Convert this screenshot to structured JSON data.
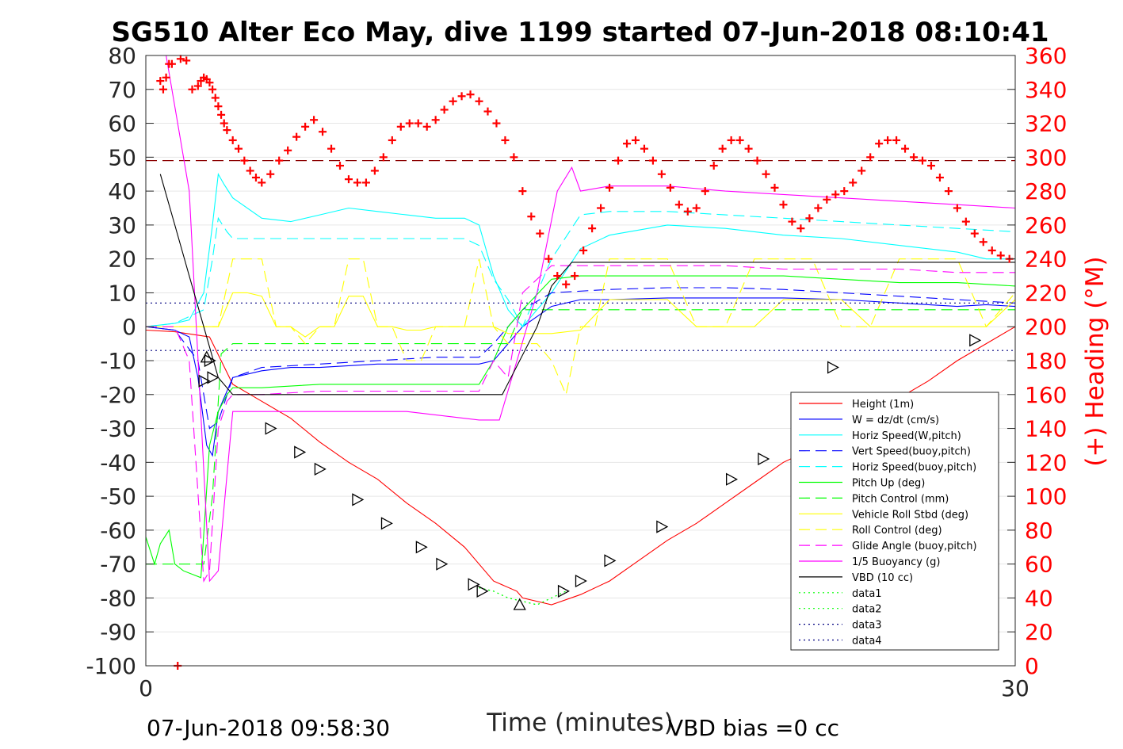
{
  "chart_data": {
    "type": "line",
    "title": "SG510 Alter Eco May, dive 1199 started 07-Jun-2018 08:10:41",
    "xlabel": "Time (minutes)",
    "ylabel_right": "(+) Heading (°M)",
    "footer_left": "07-Jun-2018 09:58:30",
    "footer_right": "VBD bias =0 cc",
    "xlim": [
      0,
      30
    ],
    "ylim": [
      -100,
      80
    ],
    "ylim_right": [
      0,
      360
    ],
    "x_ticks": [
      0,
      30
    ],
    "y_ticks": [
      80,
      70,
      60,
      50,
      40,
      30,
      20,
      10,
      0,
      -10,
      -20,
      -30,
      -40,
      -50,
      -60,
      -70,
      -80,
      -90,
      -100
    ],
    "y_ticks_right": [
      360,
      340,
      320,
      300,
      280,
      260,
      240,
      220,
      200,
      180,
      160,
      140,
      120,
      100,
      80,
      60,
      40,
      20,
      0
    ],
    "grid": true,
    "legend_position": "bottom-right",
    "colors": {
      "red": "#ff0000",
      "blue": "#0000ff",
      "cyan": "#00ffff",
      "green": "#00ff00",
      "yellow": "#ffff00",
      "magenta": "#ff00ff",
      "black": "#000000",
      "dark_red": "#8b0000",
      "navy": "#000080"
    },
    "series": [
      {
        "name": "Height (1m)",
        "color": "#ff0000",
        "style": "solid",
        "x": [
          0,
          1,
          2.2,
          3,
          4,
          5,
          6,
          7,
          8,
          9,
          10,
          11,
          11.5,
          12,
          12.8,
          13,
          14,
          15,
          16,
          17,
          18,
          19,
          20,
          21,
          22,
          23,
          24,
          25,
          26,
          27,
          28,
          29,
          30
        ],
        "y": [
          -1,
          -1.5,
          -3,
          -17,
          -22,
          -27,
          -34,
          -40,
          -45,
          -52,
          -58,
          -65,
          -70,
          -75,
          -78,
          -80,
          -82,
          -79,
          -75,
          -69,
          -63,
          -58,
          -52,
          -46,
          -40,
          -36,
          -32,
          -27,
          -21,
          -16,
          -10,
          -5,
          0
        ]
      },
      {
        "name": "W = dz/dt (cm/s)",
        "color": "#0000ff",
        "style": "solid",
        "x": [
          0,
          1,
          1.5,
          1.8,
          2.1,
          2.3,
          2.5,
          3,
          4,
          5,
          6,
          8,
          10,
          11,
          11.5,
          12,
          13,
          14,
          15,
          16,
          18,
          20,
          22,
          24,
          26,
          28,
          29,
          30
        ],
        "y": [
          0,
          -1,
          -3,
          -15,
          -35,
          -38,
          -25,
          -15,
          -13,
          -12,
          -12,
          -11,
          -11,
          -11,
          -11,
          -10,
          0,
          6,
          8,
          8,
          8.5,
          8.5,
          8.5,
          8,
          7,
          6,
          6.5,
          6
        ]
      },
      {
        "name": "Horiz Speed(W,pitch)",
        "color": "#00ffff",
        "style": "solid",
        "x": [
          0,
          1,
          1.5,
          2,
          2.3,
          2.5,
          2.7,
          3,
          4,
          5,
          6,
          7,
          8,
          9,
          10,
          11,
          11.5,
          12,
          12.5,
          13,
          14,
          15,
          16,
          18,
          20,
          22,
          24,
          26,
          28,
          29,
          30
        ],
        "y": [
          0,
          1,
          2,
          10,
          30,
          45,
          42,
          38,
          32,
          31,
          33,
          35,
          34,
          33,
          32,
          32,
          30,
          15,
          5,
          0,
          10,
          23,
          27,
          30,
          29,
          27,
          26,
          24,
          22,
          20,
          20
        ]
      },
      {
        "name": "Vert Speed(buoy,pitch)",
        "color": "#0000ff",
        "style": "dashed",
        "x": [
          0,
          1,
          1.8,
          2.2,
          2.5,
          3,
          4,
          6,
          8,
          10,
          11,
          11.5,
          12,
          13,
          14,
          16,
          18,
          20,
          22,
          24,
          26,
          28,
          30
        ],
        "y": [
          0,
          -1,
          -10,
          -30,
          -28,
          -15,
          -12,
          -11,
          -10,
          -9,
          -9,
          -9,
          -5,
          5,
          10,
          11,
          11.5,
          11.5,
          11,
          10,
          9,
          8,
          7
        ]
      },
      {
        "name": "Horiz Speed(buoy,pitch)",
        "color": "#00ffff",
        "style": "dashed",
        "x": [
          0,
          1,
          2,
          2.3,
          2.5,
          2.8,
          3,
          4,
          6,
          8,
          10,
          11,
          11.5,
          12,
          12.5,
          13,
          14,
          15,
          16,
          18,
          20,
          22,
          24,
          26,
          28,
          30
        ],
        "y": [
          0,
          1,
          5,
          20,
          32,
          28,
          26,
          26,
          26,
          26,
          26,
          26,
          24,
          14,
          8,
          0,
          20,
          33,
          34,
          34,
          33,
          32,
          31,
          30,
          29,
          28
        ]
      },
      {
        "name": "Pitch Up (deg)",
        "color": "#00ff00",
        "style": "solid",
        "x": [
          0,
          0.3,
          0.5,
          0.8,
          1,
          1.3,
          1.6,
          1.9,
          2.2,
          2.5,
          2.8,
          3,
          4,
          6,
          8,
          10,
          11,
          11.5,
          12,
          12.5,
          13,
          14,
          15,
          16,
          18,
          20,
          22,
          24,
          26,
          28,
          30
        ],
        "y": [
          -62,
          -70,
          -64,
          -60,
          -70,
          -72,
          -73,
          -74,
          -35,
          -25,
          -20,
          -18,
          -18,
          -17,
          -17,
          -17,
          -17,
          -17,
          -10,
          0,
          5,
          14,
          15,
          15,
          15,
          15,
          15,
          14,
          13,
          13,
          12
        ]
      },
      {
        "name": "Pitch Control (mm)",
        "color": "#00ff00",
        "style": "dashed",
        "x": [
          0,
          1,
          1.5,
          1.8,
          2,
          2.3,
          2.6,
          3,
          6,
          9,
          11,
          11.5,
          12,
          12.5,
          13,
          14,
          16,
          20,
          25,
          30
        ],
        "y": [
          -70,
          -70,
          -70,
          -70,
          -70,
          -50,
          -8,
          -5,
          -5,
          -5,
          -5,
          -5,
          -5,
          -5,
          5,
          5,
          5,
          5,
          5,
          5
        ]
      },
      {
        "name": "Vehicle Roll Stbd (deg)",
        "color": "#ffff00",
        "style": "solid",
        "x": [
          0,
          0.5,
          1,
          1.5,
          2,
          2.5,
          3,
          3.5,
          4,
          4.5,
          5,
          5.5,
          6,
          6.5,
          7,
          7.5,
          8,
          8.5,
          9,
          9.5,
          10,
          10.5,
          11,
          11.5,
          12,
          12.5,
          13,
          13.5,
          14,
          15,
          16,
          17,
          18,
          19,
          20,
          21,
          22,
          23,
          24,
          25,
          26,
          27,
          28,
          29,
          30
        ],
        "y": [
          0,
          0,
          0,
          0,
          0,
          0,
          10,
          10,
          9,
          0,
          0,
          -3,
          0,
          0,
          9,
          9,
          0,
          0,
          -1,
          -1,
          0,
          0,
          0,
          0,
          0,
          -2,
          -2,
          -2,
          -2,
          -1,
          8,
          8,
          8,
          0,
          0,
          0,
          8,
          8,
          8,
          0,
          0,
          0,
          0,
          0,
          8
        ]
      },
      {
        "name": "Roll Control (deg)",
        "color": "#ffff00",
        "style": "dashed",
        "x": [
          0,
          0.5,
          1,
          1.5,
          2,
          2.5,
          3,
          3.5,
          4,
          4.5,
          5,
          5.5,
          6,
          6.5,
          7,
          7.5,
          8,
          8.5,
          9,
          9.5,
          10,
          10.5,
          11,
          11.5,
          12,
          12.5,
          13,
          13.5,
          14,
          14.5,
          15,
          15.5,
          16,
          17,
          18,
          19,
          20,
          21,
          22,
          23,
          24,
          25,
          26,
          27,
          28,
          29,
          30
        ],
        "y": [
          0,
          0,
          0,
          0,
          0,
          0,
          20,
          20,
          20,
          0,
          0,
          -5,
          0,
          0,
          20,
          20,
          0,
          0,
          -10,
          -10,
          0,
          0,
          0,
          20,
          0,
          -5,
          -5,
          -5,
          -10,
          -20,
          0,
          0,
          20,
          20,
          20,
          0,
          0,
          20,
          20,
          20,
          0,
          0,
          20,
          20,
          20,
          0,
          10
        ]
      },
      {
        "name": "Glide Angle (buoy,pitch)",
        "color": "#ff00ff",
        "style": "dashed",
        "x": [
          0,
          1,
          1.5,
          2,
          2.2,
          2.5,
          2.8,
          3,
          4,
          6,
          8,
          10,
          11,
          11.5,
          12,
          12.5,
          13,
          14,
          15,
          16,
          18,
          20,
          22,
          24,
          26,
          28,
          30
        ],
        "y": [
          0,
          0,
          -10,
          -75,
          -72,
          -30,
          -22,
          -20,
          -20,
          -19,
          -19,
          -19,
          -19,
          -19,
          -10,
          -15,
          10,
          18,
          18,
          18,
          18,
          18,
          17,
          17,
          17,
          16,
          16
        ]
      },
      {
        "name": "1/5 Buoyancy (g)",
        "color": "#ff00ff",
        "style": "solid",
        "x": [
          0.7,
          1.5,
          2.2,
          2.5,
          3,
          6,
          9,
          11.5,
          12.2,
          13.5,
          14.2,
          14.7,
          15,
          16,
          18,
          20,
          22,
          24,
          26,
          28,
          30
        ],
        "y": [
          80,
          40,
          -75,
          -72,
          -25,
          -25,
          -25,
          -27.5,
          -27.5,
          10,
          40,
          47,
          40,
          41.5,
          41.5,
          40,
          39,
          38,
          37,
          36,
          35
        ]
      },
      {
        "name": "VBD (10 cc)",
        "color": "#000000",
        "style": "solid",
        "x": [
          0.5,
          1,
          1.5,
          2,
          2.5,
          3,
          6,
          9,
          11.5,
          12.3,
          13.5,
          14,
          14.7,
          15,
          20,
          25,
          30
        ],
        "y": [
          45,
          30,
          15,
          0,
          -15,
          -20,
          -20,
          -20,
          -20,
          -20,
          0,
          12,
          19,
          19,
          19,
          19,
          19
        ]
      },
      {
        "name": "data1",
        "color": "#00ff00",
        "style": "dotted",
        "x": [
          11.5,
          12,
          12.5,
          13,
          13.5,
          14,
          14.5
        ],
        "y": [
          -77,
          -78,
          -80,
          -81,
          -82,
          -80,
          -78
        ]
      },
      {
        "name": "data2",
        "color": "#00ff00",
        "style": "dotted",
        "x": [
          11.5,
          12,
          12.5,
          13,
          13.5,
          14,
          14.5
        ],
        "y": [
          -77,
          -78,
          -80,
          -81,
          -82,
          -80,
          -78
        ]
      },
      {
        "name": "data3",
        "color": "#000080",
        "style": "dotted",
        "x": [
          0,
          30
        ],
        "y": [
          7,
          7
        ]
      },
      {
        "name": "data4",
        "color": "#000080",
        "style": "dotted",
        "x": [
          0,
          30
        ],
        "y": [
          -7,
          -7
        ]
      }
    ],
    "heading_series": {
      "color": "#ff0000",
      "marker": "+",
      "x": [
        0.5,
        0.6,
        0.7,
        0.8,
        0.9,
        1.1,
        1.2,
        1.4,
        1.6,
        1.8,
        1.9,
        2,
        2.1,
        2.2,
        2.3,
        2.4,
        2.5,
        2.6,
        2.7,
        2.8,
        3,
        3.2,
        3.4,
        3.6,
        3.8,
        4,
        4.3,
        4.6,
        4.9,
        5.2,
        5.5,
        5.8,
        6.1,
        6.4,
        6.7,
        7,
        7.3,
        7.6,
        7.9,
        8.2,
        8.5,
        8.8,
        9.1,
        9.4,
        9.7,
        10,
        10.3,
        10.6,
        10.9,
        11.2,
        11.5,
        11.8,
        12.1,
        12.4,
        12.7,
        13,
        13.3,
        13.6,
        13.9,
        14.2,
        14.5,
        14.8,
        15.1,
        15.4,
        15.7,
        16,
        16.3,
        16.6,
        16.9,
        17.2,
        17.5,
        17.8,
        18.1,
        18.4,
        18.7,
        19,
        19.3,
        19.6,
        19.9,
        20.2,
        20.5,
        20.8,
        21.1,
        21.4,
        21.7,
        22,
        22.3,
        22.6,
        22.9,
        23.2,
        23.5,
        23.8,
        24.1,
        24.4,
        24.7,
        25,
        25.3,
        25.6,
        25.9,
        26.2,
        26.5,
        26.8,
        27.1,
        27.4,
        27.7,
        28,
        28.3,
        28.6,
        28.9,
        29.2,
        29.5,
        29.8
      ],
      "y": [
        345,
        340,
        347,
        355,
        355,
        0,
        358,
        357,
        340,
        342,
        345,
        347,
        346,
        344,
        340,
        335,
        330,
        325,
        320,
        316,
        310,
        305,
        298,
        292,
        288,
        285,
        290,
        298,
        304,
        312,
        318,
        322,
        315,
        305,
        295,
        287,
        285,
        285,
        292,
        300,
        310,
        318,
        320,
        320,
        318,
        322,
        328,
        333,
        336,
        337,
        333,
        327,
        320,
        310,
        300,
        280,
        265,
        255,
        240,
        230,
        225,
        230,
        245,
        258,
        270,
        282,
        298,
        308,
        310,
        305,
        298,
        290,
        282,
        272,
        268,
        270,
        280,
        295,
        305,
        310,
        310,
        305,
        298,
        290,
        282,
        272,
        262,
        258,
        264,
        270,
        275,
        278,
        280,
        285,
        292,
        300,
        308,
        310,
        310,
        305,
        300,
        298,
        295,
        288,
        280,
        270,
        262,
        255,
        250,
        245,
        242,
        240
      ]
    },
    "reference_line": {
      "color": "#8b0000",
      "style": "dashed",
      "y_right": 298
    },
    "markers": {
      "color": "#000000",
      "right_facing": {
        "x": [
          2.0,
          2.2,
          2.3,
          4.3,
          5.3,
          6.0,
          7.3,
          8.3,
          9.5,
          10.2,
          11.3,
          11.6,
          14.4,
          15.0,
          16.0,
          17.8,
          20.2,
          21.3,
          23.7,
          28.6
        ],
        "y": [
          -16,
          -10,
          -15,
          -30,
          -37,
          -42,
          -51,
          -58,
          -65,
          -70,
          -76,
          -78,
          -78,
          -75,
          -69,
          -59,
          -45,
          -39,
          -12,
          -4
        ]
      },
      "up_facing": {
        "x": [
          2.1,
          12.9
        ],
        "y": [
          -9,
          -82
        ]
      }
    }
  },
  "legend_entries": [
    "Height (1m)",
    "W = dz/dt (cm/s)",
    "Horiz Speed(W,pitch)",
    "Vert Speed(buoy,pitch)",
    "Horiz Speed(buoy,pitch)",
    "Pitch Up (deg)",
    "Pitch Control (mm)",
    "Vehicle Roll Stbd (deg)",
    "Roll Control (deg)",
    "Glide Angle (buoy,pitch)",
    "1/5 Buoyancy (g)",
    "VBD (10 cc)",
    "data1",
    "data2",
    "data3",
    "data4"
  ]
}
